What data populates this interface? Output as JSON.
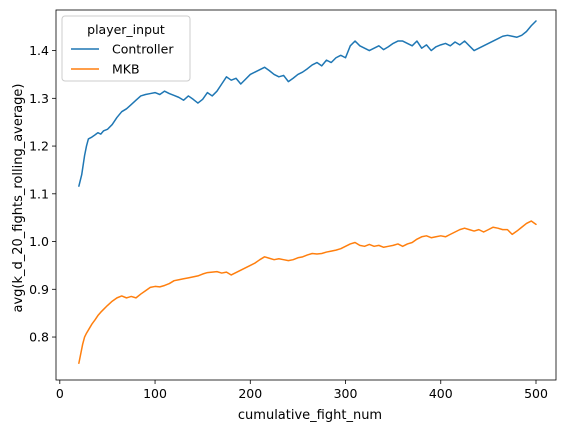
{
  "chart_data": {
    "type": "line",
    "title": "",
    "xlabel": "cumulative_fight_num",
    "ylabel": "avg(k_d_20_fights_rolling_average)",
    "xlim": [
      -4,
      521
    ],
    "ylim": [
      0.71,
      1.485
    ],
    "xticks": [
      0,
      100,
      200,
      300,
      400,
      500
    ],
    "yticks": [
      0.8,
      0.9,
      1.0,
      1.1,
      1.2,
      1.3,
      1.4
    ],
    "ytick_labels": [
      "0.8",
      "0.9",
      "1.0",
      "1.1",
      "1.2",
      "1.3",
      "1.4"
    ],
    "grid": false,
    "legend": {
      "title": "player_input",
      "position": "top-left"
    },
    "series": [
      {
        "name": "Controller",
        "color": "#1f77b4",
        "points": [
          [
            20,
            1.116
          ],
          [
            23,
            1.14
          ],
          [
            26,
            1.18
          ],
          [
            28,
            1.2
          ],
          [
            30,
            1.215
          ],
          [
            33,
            1.218
          ],
          [
            36,
            1.222
          ],
          [
            38,
            1.225
          ],
          [
            40,
            1.228
          ],
          [
            43,
            1.225
          ],
          [
            46,
            1.232
          ],
          [
            50,
            1.235
          ],
          [
            55,
            1.245
          ],
          [
            60,
            1.26
          ],
          [
            65,
            1.272
          ],
          [
            70,
            1.278
          ],
          [
            75,
            1.287
          ],
          [
            80,
            1.296
          ],
          [
            85,
            1.305
          ],
          [
            90,
            1.308
          ],
          [
            95,
            1.31
          ],
          [
            100,
            1.312
          ],
          [
            105,
            1.308
          ],
          [
            110,
            1.315
          ],
          [
            115,
            1.31
          ],
          [
            120,
            1.306
          ],
          [
            125,
            1.302
          ],
          [
            130,
            1.296
          ],
          [
            135,
            1.305
          ],
          [
            140,
            1.298
          ],
          [
            145,
            1.29
          ],
          [
            150,
            1.298
          ],
          [
            155,
            1.312
          ],
          [
            160,
            1.305
          ],
          [
            165,
            1.315
          ],
          [
            170,
            1.33
          ],
          [
            175,
            1.345
          ],
          [
            180,
            1.338
          ],
          [
            185,
            1.342
          ],
          [
            190,
            1.33
          ],
          [
            195,
            1.34
          ],
          [
            200,
            1.35
          ],
          [
            205,
            1.355
          ],
          [
            210,
            1.36
          ],
          [
            215,
            1.365
          ],
          [
            220,
            1.358
          ],
          [
            225,
            1.35
          ],
          [
            230,
            1.345
          ],
          [
            235,
            1.348
          ],
          [
            240,
            1.335
          ],
          [
            245,
            1.342
          ],
          [
            250,
            1.35
          ],
          [
            255,
            1.355
          ],
          [
            260,
            1.362
          ],
          [
            265,
            1.37
          ],
          [
            270,
            1.375
          ],
          [
            275,
            1.368
          ],
          [
            280,
            1.38
          ],
          [
            285,
            1.375
          ],
          [
            290,
            1.385
          ],
          [
            295,
            1.39
          ],
          [
            300,
            1.385
          ],
          [
            305,
            1.41
          ],
          [
            310,
            1.42
          ],
          [
            315,
            1.41
          ],
          [
            320,
            1.405
          ],
          [
            325,
            1.4
          ],
          [
            330,
            1.405
          ],
          [
            335,
            1.41
          ],
          [
            340,
            1.402
          ],
          [
            345,
            1.408
          ],
          [
            350,
            1.415
          ],
          [
            355,
            1.42
          ],
          [
            360,
            1.42
          ],
          [
            365,
            1.415
          ],
          [
            370,
            1.41
          ],
          [
            375,
            1.42
          ],
          [
            380,
            1.405
          ],
          [
            385,
            1.412
          ],
          [
            390,
            1.4
          ],
          [
            395,
            1.408
          ],
          [
            400,
            1.412
          ],
          [
            405,
            1.415
          ],
          [
            410,
            1.41
          ],
          [
            415,
            1.418
          ],
          [
            420,
            1.412
          ],
          [
            425,
            1.42
          ],
          [
            430,
            1.41
          ],
          [
            435,
            1.4
          ],
          [
            440,
            1.405
          ],
          [
            445,
            1.41
          ],
          [
            450,
            1.415
          ],
          [
            455,
            1.42
          ],
          [
            460,
            1.425
          ],
          [
            465,
            1.43
          ],
          [
            470,
            1.432
          ],
          [
            475,
            1.43
          ],
          [
            480,
            1.428
          ],
          [
            485,
            1.432
          ],
          [
            490,
            1.44
          ],
          [
            495,
            1.452
          ],
          [
            500,
            1.462
          ]
        ]
      },
      {
        "name": "MKB",
        "color": "#ff7f0e",
        "points": [
          [
            20,
            0.745
          ],
          [
            22,
            0.765
          ],
          [
            24,
            0.785
          ],
          [
            26,
            0.8
          ],
          [
            28,
            0.808
          ],
          [
            31,
            0.818
          ],
          [
            34,
            0.828
          ],
          [
            37,
            0.836
          ],
          [
            40,
            0.845
          ],
          [
            43,
            0.852
          ],
          [
            46,
            0.858
          ],
          [
            50,
            0.866
          ],
          [
            55,
            0.875
          ],
          [
            60,
            0.882
          ],
          [
            65,
            0.886
          ],
          [
            70,
            0.882
          ],
          [
            75,
            0.885
          ],
          [
            80,
            0.882
          ],
          [
            85,
            0.89
          ],
          [
            90,
            0.897
          ],
          [
            95,
            0.904
          ],
          [
            100,
            0.906
          ],
          [
            105,
            0.905
          ],
          [
            110,
            0.908
          ],
          [
            115,
            0.912
          ],
          [
            120,
            0.918
          ],
          [
            125,
            0.92
          ],
          [
            130,
            0.922
          ],
          [
            135,
            0.924
          ],
          [
            140,
            0.926
          ],
          [
            145,
            0.928
          ],
          [
            150,
            0.932
          ],
          [
            155,
            0.935
          ],
          [
            160,
            0.936
          ],
          [
            165,
            0.937
          ],
          [
            170,
            0.934
          ],
          [
            175,
            0.936
          ],
          [
            180,
            0.93
          ],
          [
            185,
            0.935
          ],
          [
            190,
            0.94
          ],
          [
            195,
            0.945
          ],
          [
            200,
            0.95
          ],
          [
            205,
            0.955
          ],
          [
            210,
            0.962
          ],
          [
            215,
            0.968
          ],
          [
            220,
            0.965
          ],
          [
            225,
            0.962
          ],
          [
            230,
            0.964
          ],
          [
            235,
            0.962
          ],
          [
            240,
            0.96
          ],
          [
            245,
            0.962
          ],
          [
            250,
            0.966
          ],
          [
            255,
            0.968
          ],
          [
            260,
            0.972
          ],
          [
            265,
            0.975
          ],
          [
            270,
            0.974
          ],
          [
            275,
            0.975
          ],
          [
            280,
            0.978
          ],
          [
            285,
            0.98
          ],
          [
            290,
            0.982
          ],
          [
            295,
            0.985
          ],
          [
            300,
            0.99
          ],
          [
            305,
            0.995
          ],
          [
            310,
            0.998
          ],
          [
            315,
            0.992
          ],
          [
            320,
            0.99
          ],
          [
            325,
            0.994
          ],
          [
            330,
            0.99
          ],
          [
            335,
            0.992
          ],
          [
            340,
            0.988
          ],
          [
            345,
            0.99
          ],
          [
            350,
            0.992
          ],
          [
            355,
            0.995
          ],
          [
            360,
            0.99
          ],
          [
            365,
            0.995
          ],
          [
            370,
            0.998
          ],
          [
            375,
            1.005
          ],
          [
            380,
            1.01
          ],
          [
            385,
            1.012
          ],
          [
            390,
            1.008
          ],
          [
            395,
            1.01
          ],
          [
            400,
            1.012
          ],
          [
            405,
            1.01
          ],
          [
            410,
            1.015
          ],
          [
            415,
            1.02
          ],
          [
            420,
            1.025
          ],
          [
            425,
            1.028
          ],
          [
            430,
            1.025
          ],
          [
            435,
            1.022
          ],
          [
            440,
            1.025
          ],
          [
            445,
            1.02
          ],
          [
            450,
            1.025
          ],
          [
            455,
            1.03
          ],
          [
            460,
            1.028
          ],
          [
            465,
            1.025
          ],
          [
            470,
            1.025
          ],
          [
            475,
            1.015
          ],
          [
            480,
            1.022
          ],
          [
            485,
            1.03
          ],
          [
            490,
            1.038
          ],
          [
            495,
            1.043
          ],
          [
            500,
            1.036
          ]
        ]
      }
    ]
  }
}
